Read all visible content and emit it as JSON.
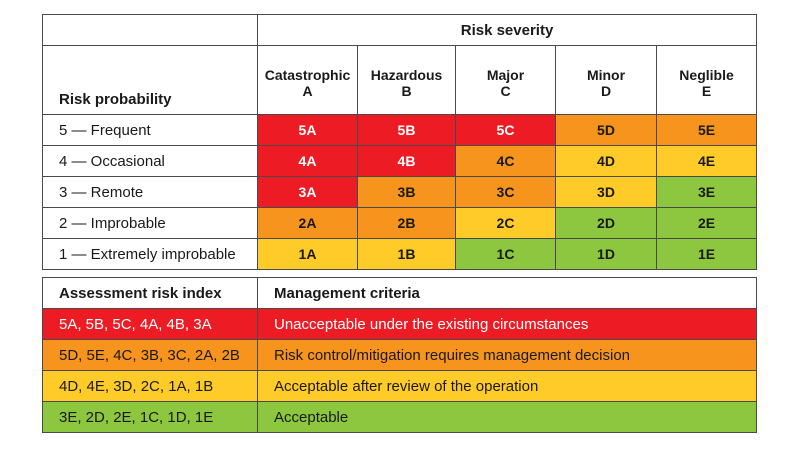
{
  "matrix": {
    "severity_title": "Risk severity",
    "probability_title": "Risk probability",
    "severity_columns": [
      {
        "name": "Catastrophic",
        "code": "A"
      },
      {
        "name": "Hazardous",
        "code": "B"
      },
      {
        "name": "Major",
        "code": "C"
      },
      {
        "name": "Minor",
        "code": "D"
      },
      {
        "name": "Neglible",
        "code": "E"
      }
    ],
    "rows": [
      {
        "label": "5 — Frequent",
        "cells": [
          "5A",
          "5B",
          "5C",
          "5D",
          "5E"
        ],
        "colors": [
          "red",
          "red",
          "red",
          "orange",
          "orange"
        ]
      },
      {
        "label": "4 — Occasional",
        "cells": [
          "4A",
          "4B",
          "4C",
          "4D",
          "4E"
        ],
        "colors": [
          "red",
          "red",
          "orange",
          "yellow",
          "yellow"
        ]
      },
      {
        "label": "3 — Remote",
        "cells": [
          "3A",
          "3B",
          "3C",
          "3D",
          "3E"
        ],
        "colors": [
          "red",
          "orange",
          "orange",
          "yellow",
          "green"
        ]
      },
      {
        "label": "2 — Improbable",
        "cells": [
          "2A",
          "2B",
          "2C",
          "2D",
          "2E"
        ],
        "colors": [
          "orange",
          "orange",
          "yellow",
          "green",
          "green"
        ]
      },
      {
        "label": "1 — Extremely improbable",
        "cells": [
          "1A",
          "1B",
          "1C",
          "1D",
          "1E"
        ],
        "colors": [
          "yellow",
          "yellow",
          "green",
          "green",
          "green"
        ]
      }
    ]
  },
  "legend": {
    "header_index": "Assessment risk index",
    "header_criteria": "Management criteria",
    "rows": [
      {
        "index": "5A, 5B, 5C, 4A, 4B, 3A",
        "criteria": "Unacceptable under the existing circumstances",
        "color": "red"
      },
      {
        "index": "5D, 5E, 4C, 3B, 3C, 2A, 2B",
        "criteria": "Risk control/mitigation requires management decision",
        "color": "orange"
      },
      {
        "index": "4D, 4E, 3D, 2C, 1A, 1B",
        "criteria": "Acceptable after review of the operation",
        "color": "yellow"
      },
      {
        "index": "3E, 2D, 2E, 1C, 1D, 1E",
        "criteria": "Acceptable",
        "color": "green"
      }
    ]
  },
  "colors": {
    "red": "#ed1c24",
    "orange": "#f7941d",
    "yellow": "#ffcb29",
    "green": "#8dc63f"
  }
}
